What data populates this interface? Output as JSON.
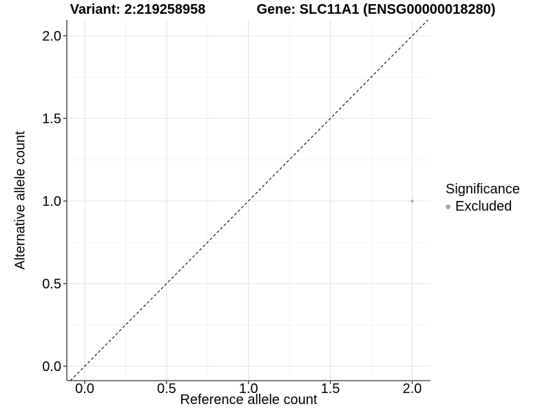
{
  "chart_data": {
    "type": "scatter",
    "titles": [
      "Variant: 2:219258958",
      "Gene: SLC11A1 (ENSG00000018280)"
    ],
    "xlabel": "Reference allele count",
    "ylabel": "Alternative allele count",
    "xlim": [
      -0.11,
      2.11
    ],
    "ylim": [
      -0.09,
      2.1
    ],
    "x_ticks": [
      0,
      0.5,
      1,
      1.5,
      2
    ],
    "y_ticks": [
      0,
      0.5,
      1,
      1.5,
      2
    ],
    "x_tick_labels": [
      "0.0",
      "0.5",
      "1.0",
      "1.5",
      "2.0"
    ],
    "y_tick_labels": [
      "0.0",
      "0.5",
      "1.0",
      "1.5",
      "2.0"
    ],
    "grid": {
      "major": true,
      "minor": true
    },
    "reference_line": {
      "slope": 1,
      "intercept": 0,
      "style": "dashed",
      "color": "#000000"
    },
    "series": [
      {
        "name": "Excluded",
        "color": "#A9A9A9",
        "marker": "circle",
        "points": [
          {
            "x": 2.0,
            "y": 1.0
          }
        ]
      }
    ],
    "legend": {
      "title": "Significance",
      "position": "right",
      "items": [
        {
          "label": "Excluded",
          "color": "#A9A9A9"
        }
      ]
    }
  },
  "style": {
    "background": "#FFFFFF",
    "grid_major_color": "#E3E3E3",
    "grid_minor_color": "#EFEFEF",
    "axis_line_color": "#333333",
    "tick_color": "#333333",
    "text_color": "#000000"
  }
}
